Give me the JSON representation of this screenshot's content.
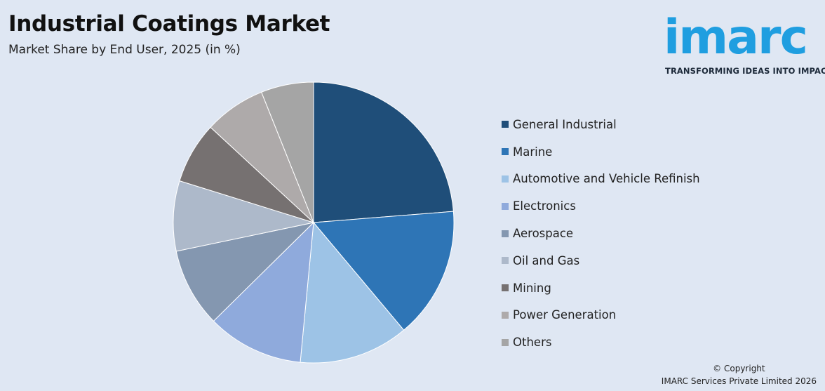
{
  "header": {
    "title": "Industrial Coatings Market",
    "subtitle": "Market Share by End User, 2025 (in %)"
  },
  "logo": {
    "word": "imarc",
    "tagline": "TRANSFORMING IDEAS INTO IMPACT",
    "color": "#1f9ee0"
  },
  "chart_data": {
    "type": "pie",
    "categories": [
      "General Industrial",
      "Marine",
      "Automotive and Vehicle Refinish",
      "Electronics",
      "Aerospace",
      "Oil and Gas",
      "Mining",
      "Power Generation",
      "Others"
    ],
    "values": [
      23.5,
      15.0,
      12.5,
      11.0,
      9.0,
      8.0,
      7.0,
      7.0,
      6.0
    ],
    "colors": [
      "#1f4e79",
      "#2e75b6",
      "#9dc3e6",
      "#8faadc",
      "#8497b0",
      "#adb9ca",
      "#767171",
      "#aeaaaa",
      "#a5a5a5"
    ],
    "start_angle": "12 o'clock",
    "direction": "clockwise",
    "legend_position": "right"
  },
  "footer": {
    "copyright_line1": "© Copyright",
    "copyright_line2": "IMARC Services Private Limited 2026"
  }
}
